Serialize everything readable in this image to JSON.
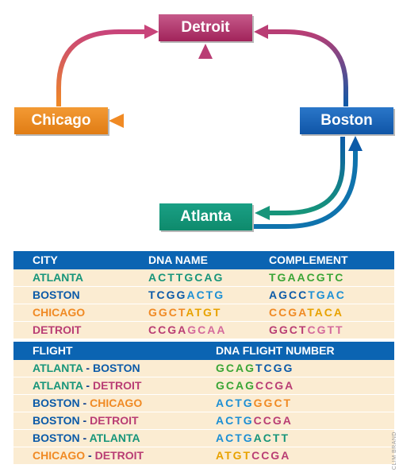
{
  "cities": {
    "detroit": "Detroit",
    "chicago": "Chicago",
    "boston": "Boston",
    "atlanta": "Atlanta"
  },
  "colors": {
    "atlanta": "#17957a",
    "boston": "#0b5aa8",
    "chicago": "#f08a24",
    "detroit": "#b93d74",
    "header": "#0b64b2",
    "row_bg": "#fbecd2",
    "seq_green": "#3aa536",
    "seq_blue": "#1c8fd4"
  },
  "city_table": {
    "headers": [
      "CITY",
      "DNA NAME",
      "COMPLEMENT"
    ],
    "rows": [
      {
        "city": "ATLANTA",
        "name_a": "ACTT",
        "name_b": "GCAG",
        "comp_a": "TGAA",
        "comp_b": "CGTC"
      },
      {
        "city": "BOSTON",
        "name_a": "TCGG",
        "name_b": "ACTG",
        "comp_a": "AGCC",
        "comp_b": "TGAC"
      },
      {
        "city": "CHICAGO",
        "name_a": "GGCT",
        "name_b": "ATGT",
        "comp_a": "CCGA",
        "comp_b": "TACA"
      },
      {
        "city": "DETROIT",
        "name_a": "CCGA",
        "name_b": "GCAA",
        "comp_a": "GGCT",
        "comp_b": "CGTT"
      }
    ]
  },
  "flight_table": {
    "headers": [
      "FLIGHT",
      "DNA FLIGHT NUMBER"
    ],
    "separator": " - ",
    "rows": [
      {
        "from": "ATLANTA",
        "to": "BOSTON",
        "num_a": "GCAG",
        "num_b": "TCGG"
      },
      {
        "from": "ATLANTA",
        "to": "DETROIT",
        "num_a": "GCAG",
        "num_b": "CCGA"
      },
      {
        "from": "BOSTON",
        "to": "CHICAGO",
        "num_a": "ACTG",
        "num_b": "GGCT"
      },
      {
        "from": "BOSTON",
        "to": "DETROIT",
        "num_a": "ACTG",
        "num_b": "CCGA"
      },
      {
        "from": "BOSTON",
        "to": "ATLANTA",
        "num_a": "ACTG",
        "num_b": "ACTT"
      },
      {
        "from": "CHICAGO",
        "to": "DETROIT",
        "num_a": "ATGT",
        "num_b": "CCGA"
      }
    ]
  },
  "credit": "CLIM BRAND"
}
